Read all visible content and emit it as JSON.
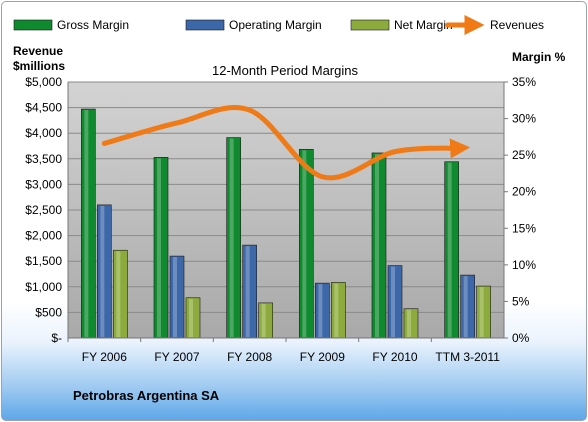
{
  "chart_data": {
    "type": "bar",
    "title": "12-Month Period Margins",
    "categories": [
      "FY 2006",
      "FY 2007",
      "FY 2008",
      "FY 2009",
      "FY 2010",
      "TTM 3-2011"
    ],
    "series": [
      {
        "name": "Gross Margin",
        "axis": "right",
        "color": "#0f8a2e",
        "values": [
          31.3,
          24.7,
          27.4,
          25.8,
          25.3,
          24.1
        ]
      },
      {
        "name": "Operating Margin",
        "axis": "right",
        "color": "#3c67a8",
        "values": [
          18.2,
          11.2,
          12.7,
          7.5,
          9.9,
          8.6
        ]
      },
      {
        "name": "Net Margin",
        "axis": "right",
        "color": "#8cab3c",
        "values": [
          12.0,
          5.5,
          4.8,
          7.6,
          4.0,
          7.1
        ]
      },
      {
        "name": "Revenues",
        "type": "line",
        "axis": "left",
        "color": "#f07a16",
        "values": [
          3800,
          4200,
          4450,
          3150,
          3640,
          3710
        ]
      }
    ],
    "left_axis": {
      "title_line1": "Revenue",
      "title_line2": "$millions",
      "ylim": [
        0,
        5000
      ],
      "ticks": [
        "$-",
        "$500",
        "$1,000",
        "$1,500",
        "$2,000",
        "$2,500",
        "$3,000",
        "$3,500",
        "$4,000",
        "$4,500",
        "$5,000"
      ]
    },
    "right_axis": {
      "title": "Margin %",
      "ylim": [
        0,
        35
      ],
      "ticks": [
        "0%",
        "5%",
        "10%",
        "15%",
        "20%",
        "25%",
        "30%",
        "35%"
      ]
    },
    "grid": true,
    "legend_position": "top",
    "footer": "Petrobras Argentina SA"
  }
}
